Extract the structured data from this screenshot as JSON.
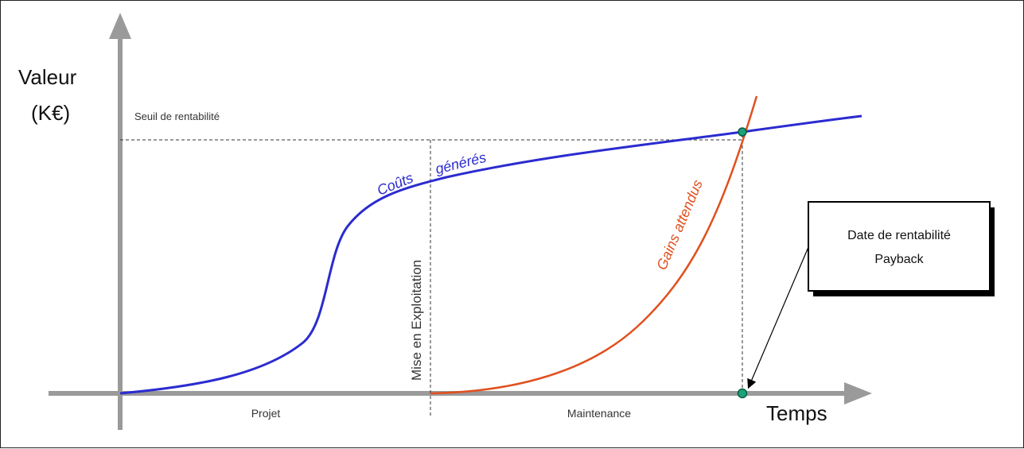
{
  "diagram": {
    "axis_y_label_line1": "Valeur",
    "axis_y_label_line2": "(K€)",
    "axis_x_label": "Temps",
    "threshold_label": "Seuil de rentabilité",
    "cost_curve_label_1": "Coûts",
    "cost_curve_label_2": "générés",
    "gains_curve_label": "Gains attendus",
    "milestone_label": "Mise en Exploitation",
    "phase_1_label": "Projet",
    "phase_2_label": "Maintenance",
    "callout_line1": "Date de rentabilité",
    "callout_line2": "Payback",
    "colors": {
      "cost_curve": "#2b2bd0",
      "gains_curve": "#e0501e",
      "axes": "#9a9a9a",
      "marker": "#1aa37a"
    }
  }
}
